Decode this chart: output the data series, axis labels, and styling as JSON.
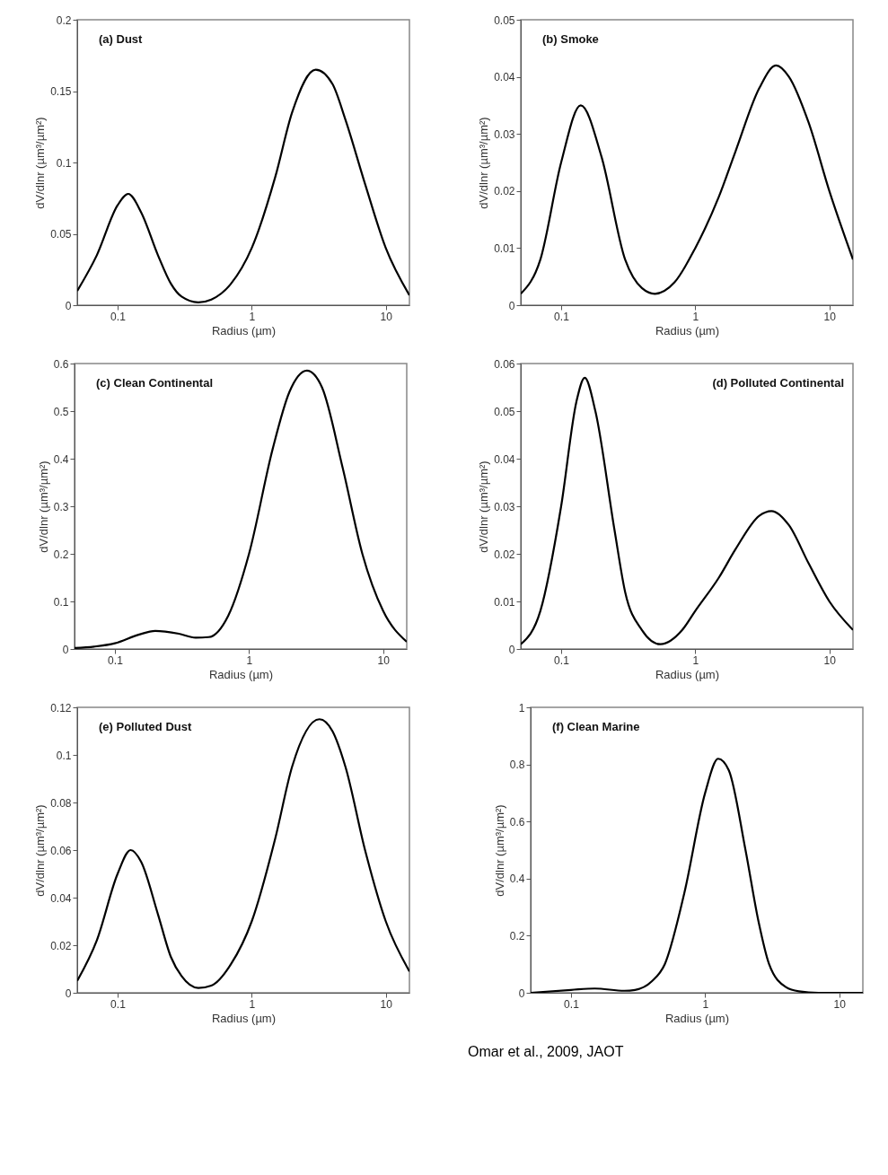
{
  "chart_data": [
    {
      "type": "line",
      "title": "(a) Dust",
      "xlabel": "Radius (µm)",
      "ylabel": "dV/dlnr (µm³/µm²)",
      "log": "x",
      "xlim": [
        0.05,
        15
      ],
      "xticks": [
        0.1,
        1,
        10
      ],
      "ylim": [
        0,
        0.2
      ],
      "yticks": [
        0,
        0.05,
        0.1,
        0.15,
        0.2
      ],
      "x": [
        0.05,
        0.07,
        0.1,
        0.12,
        0.15,
        0.2,
        0.25,
        0.3,
        0.4,
        0.5,
        0.7,
        1,
        1.5,
        2,
        3,
        4,
        5,
        7,
        10,
        15
      ],
      "series": [
        {
          "color": "#000000",
          "values": [
            0.01,
            0.035,
            0.07,
            0.078,
            0.065,
            0.035,
            0.015,
            0.006,
            0.002,
            0.004,
            0.015,
            0.04,
            0.09,
            0.135,
            0.165,
            0.155,
            0.13,
            0.085,
            0.04,
            0.007
          ]
        }
      ]
    },
    {
      "type": "line",
      "title": "(b) Smoke",
      "xlabel": "Radius (µm)",
      "ylabel": "dV/dlnr (µm³/µm²)",
      "log": "x",
      "xlim": [
        0.05,
        15
      ],
      "xticks": [
        0.1,
        1,
        10
      ],
      "ylim": [
        0,
        0.05
      ],
      "yticks": [
        0,
        0.01,
        0.02,
        0.03,
        0.04,
        0.05
      ],
      "x": [
        0.05,
        0.07,
        0.1,
        0.14,
        0.2,
        0.3,
        0.4,
        0.5,
        0.7,
        1,
        1.5,
        2,
        3,
        4,
        5,
        7,
        10,
        15
      ],
      "series": [
        {
          "color": "#000000",
          "values": [
            0.002,
            0.008,
            0.025,
            0.035,
            0.026,
            0.008,
            0.003,
            0.002,
            0.004,
            0.01,
            0.019,
            0.027,
            0.038,
            0.042,
            0.04,
            0.032,
            0.02,
            0.008
          ]
        }
      ]
    },
    {
      "type": "line",
      "title": "(c) Clean Continental",
      "xlabel": "Radius (µm)",
      "ylabel": "dV/dlnr (µm³/µm²)",
      "log": "x",
      "xlim": [
        0.05,
        15
      ],
      "xticks": [
        0.1,
        1,
        10
      ],
      "ylim": [
        0,
        0.6
      ],
      "yticks": [
        0,
        0.1,
        0.2,
        0.3,
        0.4,
        0.5,
        0.6
      ],
      "x": [
        0.05,
        0.07,
        0.1,
        0.15,
        0.2,
        0.3,
        0.4,
        0.5,
        0.7,
        1,
        1.5,
        2,
        2.7,
        3.5,
        5,
        7,
        10,
        15
      ],
      "series": [
        {
          "color": "#000000",
          "values": [
            0.002,
            0.005,
            0.012,
            0.03,
            0.038,
            0.032,
            0.024,
            0.025,
            0.07,
            0.2,
            0.42,
            0.54,
            0.585,
            0.55,
            0.38,
            0.2,
            0.08,
            0.015
          ]
        }
      ]
    },
    {
      "type": "line",
      "title": "(d) Polluted Continental",
      "xlabel": "Radius (µm)",
      "ylabel": "dV/dlnr (µm³/µm²)",
      "log": "x",
      "xlim": [
        0.05,
        15
      ],
      "xticks": [
        0.1,
        1,
        10
      ],
      "ylim": [
        0,
        0.06
      ],
      "yticks": [
        0,
        0.01,
        0.02,
        0.03,
        0.04,
        0.05,
        0.06
      ],
      "x": [
        0.05,
        0.07,
        0.1,
        0.13,
        0.15,
        0.18,
        0.25,
        0.3,
        0.4,
        0.55,
        0.8,
        1,
        1.5,
        2,
        3,
        3.7,
        5,
        7,
        10,
        15
      ],
      "series": [
        {
          "color": "#000000",
          "values": [
            0.001,
            0.008,
            0.03,
            0.052,
            0.057,
            0.05,
            0.025,
            0.012,
            0.004,
            0.001,
            0.004,
            0.008,
            0.015,
            0.021,
            0.028,
            0.029,
            0.026,
            0.018,
            0.01,
            0.004
          ]
        }
      ]
    },
    {
      "type": "line",
      "title": "(e) Polluted Dust",
      "xlabel": "Radius (µm)",
      "ylabel": "dV/dlnr (µm³/µm²)",
      "log": "x",
      "xlim": [
        0.05,
        15
      ],
      "xticks": [
        0.1,
        1,
        10
      ],
      "ylim": [
        0,
        0.12
      ],
      "yticks": [
        0,
        0.02,
        0.04,
        0.06,
        0.08,
        0.1,
        0.12
      ],
      "x": [
        0.05,
        0.07,
        0.1,
        0.125,
        0.15,
        0.2,
        0.25,
        0.3,
        0.4,
        0.5,
        0.7,
        1,
        1.5,
        2,
        3.2,
        4,
        5,
        7,
        10,
        15
      ],
      "series": [
        {
          "color": "#000000",
          "values": [
            0.005,
            0.022,
            0.05,
            0.06,
            0.055,
            0.033,
            0.015,
            0.007,
            0.002,
            0.003,
            0.012,
            0.03,
            0.065,
            0.095,
            0.115,
            0.11,
            0.095,
            0.06,
            0.03,
            0.009
          ]
        }
      ]
    },
    {
      "type": "line",
      "title": "(f) Clean Marine",
      "xlabel": "Radius (µm)",
      "ylabel": "dV/dlnr (µm³/µm²)",
      "log": "x",
      "xlim": [
        0.05,
        15
      ],
      "xticks": [
        0.1,
        1,
        10
      ],
      "ylim": [
        0,
        1
      ],
      "yticks": [
        0,
        0.2,
        0.4,
        0.6,
        0.8,
        1
      ],
      "annotations": [
        "Omar et al., 2009, JAOT"
      ],
      "x": [
        0.05,
        0.1,
        0.15,
        0.25,
        0.3,
        0.4,
        0.5,
        0.7,
        1,
        1.25,
        1.5,
        2,
        2.5,
        3,
        4,
        5,
        7,
        10,
        15
      ],
      "series": [
        {
          "color": "#000000",
          "values": [
            0,
            0.01,
            0.015,
            0.007,
            0.01,
            0.04,
            0.1,
            0.35,
            0.7,
            0.82,
            0.78,
            0.5,
            0.25,
            0.1,
            0.02,
            0.005,
            0,
            0,
            0
          ]
        }
      ]
    }
  ]
}
